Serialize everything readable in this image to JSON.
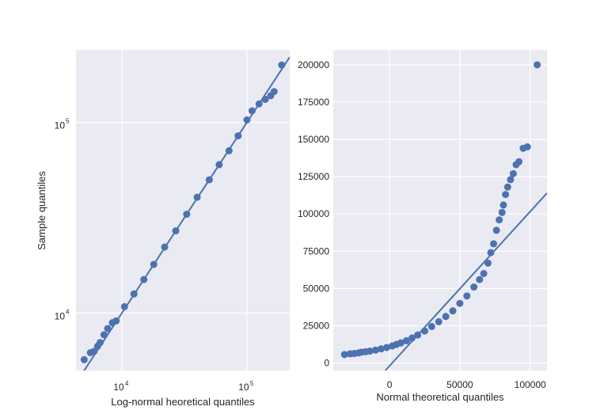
{
  "chart_data": [
    {
      "type": "scatter",
      "xlabel": "Log-normal heoretical quantiles",
      "ylabel": "Sample quantiles",
      "xscale": "log",
      "yscale": "log",
      "xlim": [
        4300,
        220000
      ],
      "ylim": [
        5000,
        240000
      ],
      "grid": true,
      "x_ticks": [
        {
          "base": "10",
          "exp": "4",
          "value": 10000
        },
        {
          "base": "10",
          "exp": "5",
          "value": 100000
        }
      ],
      "y_ticks": [
        {
          "base": "10",
          "exp": "4",
          "value": 10000
        },
        {
          "base": "10",
          "exp": "5",
          "value": 100000
        }
      ],
      "reference_line": {
        "x": [
          4300,
          220000
        ],
        "y": [
          4300,
          220000
        ]
      },
      "series": [
        {
          "points": [
            [
              5000,
              5700
            ],
            [
              5600,
              6200
            ],
            [
              6000,
              6300
            ],
            [
              6400,
              6700
            ],
            [
              6700,
              7000
            ],
            [
              7200,
              7700
            ],
            [
              7700,
              8300
            ],
            [
              8400,
              8900
            ],
            [
              9000,
              9100
            ],
            [
              10500,
              10800
            ],
            [
              12500,
              12600
            ],
            [
              15000,
              15000
            ],
            [
              18000,
              18000
            ],
            [
              22000,
              22200
            ],
            [
              27000,
              27000
            ],
            [
              33000,
              33000
            ],
            [
              40000,
              40500
            ],
            [
              50000,
              50000
            ],
            [
              60000,
              60000
            ],
            [
              72000,
              71000
            ],
            [
              85000,
              85000
            ],
            [
              100000,
              103000
            ],
            [
              110000,
              115000
            ],
            [
              125000,
              125000
            ],
            [
              140000,
              132000
            ],
            [
              155000,
              138000
            ],
            [
              165000,
              145000
            ],
            [
              190000,
              200000
            ]
          ]
        }
      ]
    },
    {
      "type": "scatter",
      "xlabel": "Normal theoretical quantiles",
      "ylabel": "",
      "xlim": [
        -40000,
        112000
      ],
      "ylim": [
        -5000,
        210000
      ],
      "grid": true,
      "x_ticks": [
        {
          "label": "0",
          "value": 0
        },
        {
          "label": "50000",
          "value": 50000
        },
        {
          "label": "100000",
          "value": 100000
        }
      ],
      "y_ticks": [
        {
          "label": "0",
          "value": 0
        },
        {
          "label": "25000",
          "value": 25000
        },
        {
          "label": "50000",
          "value": 50000
        },
        {
          "label": "75000",
          "value": 75000
        },
        {
          "label": "100000",
          "value": 100000
        },
        {
          "label": "125000",
          "value": 125000
        },
        {
          "label": "150000",
          "value": 150000
        },
        {
          "label": "175000",
          "value": 175000
        },
        {
          "label": "200000",
          "value": 200000
        }
      ],
      "reference_line": {
        "x": [
          -3000,
          112000
        ],
        "y": [
          -5000,
          114000
        ]
      },
      "series": [
        {
          "points": [
            [
              -32000,
              5700
            ],
            [
              -28000,
              6200
            ],
            [
              -25000,
              6400
            ],
            [
              -22000,
              6800
            ],
            [
              -20000,
              7300
            ],
            [
              -17000,
              7600
            ],
            [
              -14000,
              8000
            ],
            [
              -10000,
              8700
            ],
            [
              -6000,
              9500
            ],
            [
              -2000,
              10400
            ],
            [
              2000,
              11500
            ],
            [
              5000,
              12500
            ],
            [
              8000,
              13500
            ],
            [
              12000,
              15000
            ],
            [
              16000,
              16800
            ],
            [
              20000,
              18800
            ],
            [
              25000,
              21500
            ],
            [
              30000,
              24500
            ],
            [
              35000,
              27700
            ],
            [
              40000,
              31200
            ],
            [
              45000,
              35000
            ],
            [
              50000,
              40000
            ],
            [
              55000,
              45000
            ],
            [
              60000,
              51000
            ],
            [
              64000,
              56000
            ],
            [
              67000,
              60000
            ],
            [
              70000,
              67000
            ],
            [
              72000,
              74000
            ],
            [
              74000,
              80000
            ],
            [
              76000,
              89000
            ],
            [
              78000,
              96000
            ],
            [
              80000,
              101000
            ],
            [
              81000,
              106000
            ],
            [
              82500,
              113000
            ],
            [
              84000,
              118000
            ],
            [
              86000,
              123000
            ],
            [
              88000,
              127000
            ],
            [
              90000,
              133000
            ],
            [
              92000,
              135000
            ],
            [
              95000,
              144000
            ],
            [
              98000,
              145000
            ],
            [
              105000,
              200000
            ]
          ]
        }
      ]
    }
  ]
}
